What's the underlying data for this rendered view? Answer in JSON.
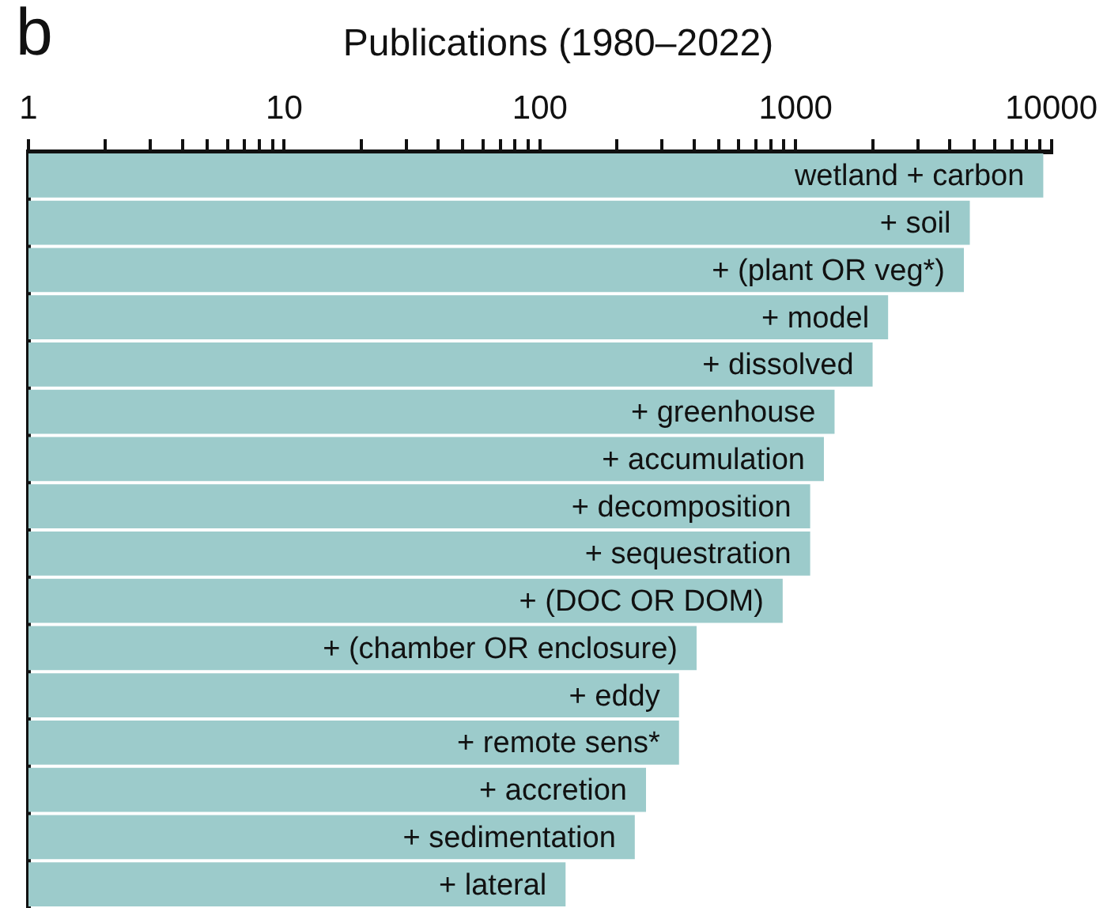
{
  "chart_data": {
    "type": "bar",
    "orientation": "horizontal",
    "log": "x",
    "title": "Publications (1980–2022)",
    "annotations": [
      "b"
    ],
    "categories": [
      "wetland + carbon",
      "+ soil",
      "+ (plant OR veg*)",
      "+ model",
      "+ dissolved",
      "+ greenhouse",
      "+ accumulation",
      "+ decomposition",
      "+ sequestration",
      "+ (DOC OR DOM)",
      "+ (chamber OR enclosure)",
      "+ eddy",
      "+ remote sens*",
      "+ accretion",
      "+ sedimentation",
      "+ lateral"
    ],
    "values": [
      9300,
      4800,
      4550,
      2300,
      2000,
      1420,
      1290,
      1140,
      1140,
      890,
      410,
      350,
      350,
      260,
      235,
      126
    ],
    "color": "#9ccbcb",
    "xlim": [
      1,
      10000
    ],
    "xticks": [
      1,
      {
        "value": 2,
        "label": null
      },
      {
        "value": 3,
        "label": null
      },
      {
        "value": 4,
        "label": null
      },
      {
        "value": 5,
        "label": null
      },
      {
        "value": 6,
        "label": null
      },
      {
        "value": 7,
        "label": null
      },
      {
        "value": 8,
        "label": null
      },
      {
        "value": 9,
        "label": null
      },
      10,
      {
        "value": 20,
        "label": null
      },
      {
        "value": 30,
        "label": null
      },
      {
        "value": 40,
        "label": null
      },
      {
        "value": 50,
        "label": null
      },
      {
        "value": 60,
        "label": null
      },
      {
        "value": 70,
        "label": null
      },
      {
        "value": 80,
        "label": null
      },
      {
        "value": 90,
        "label": null
      },
      100,
      {
        "value": 200,
        "label": null
      },
      {
        "value": 300,
        "label": null
      },
      {
        "value": 400,
        "label": null
      },
      {
        "value": 500,
        "label": null
      },
      {
        "value": 600,
        "label": null
      },
      {
        "value": 700,
        "label": null
      },
      {
        "value": 800,
        "label": null
      },
      {
        "value": 900,
        "label": null
      },
      1000,
      {
        "value": 2000,
        "label": null
      },
      {
        "value": 3000,
        "label": null
      },
      {
        "value": 4000,
        "label": null
      },
      {
        "value": 5000,
        "label": null
      },
      {
        "value": 6000,
        "label": null
      },
      {
        "value": 7000,
        "label": null
      },
      {
        "value": 8000,
        "label": null
      },
      {
        "value": 9000,
        "label": null
      },
      10000
    ],
    "grid": false,
    "legend": false
  }
}
